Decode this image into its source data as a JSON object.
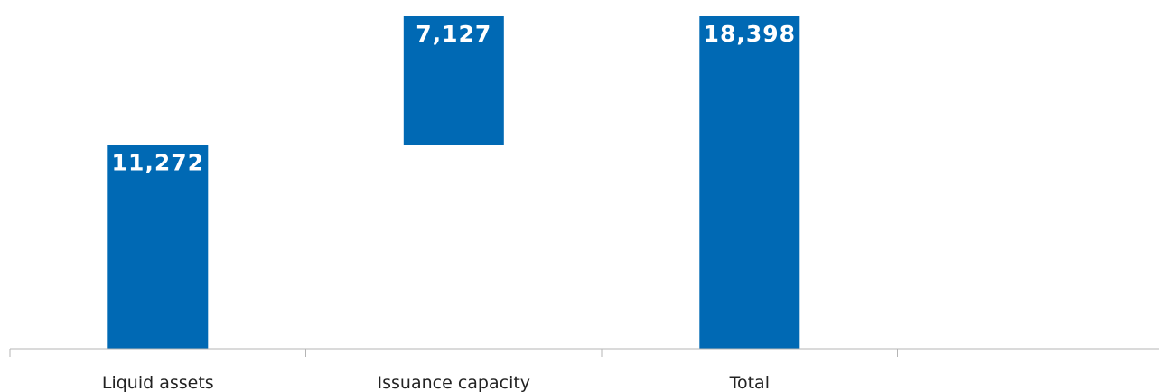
{
  "chart_data": {
    "type": "bar",
    "subtype": "waterfall",
    "title": "",
    "xlabel": "",
    "ylabel": "",
    "categories": [
      "Liquid assets",
      "Issuance capacity",
      "Total"
    ],
    "values": [
      11272,
      7127,
      18398
    ],
    "bases": [
      0,
      11272,
      0
    ],
    "data_labels": [
      "11,272",
      "7,127",
      "18,398"
    ],
    "ylim": [
      0,
      18398
    ],
    "grid": false,
    "legend": "none",
    "bar_color": "#0069B4"
  }
}
